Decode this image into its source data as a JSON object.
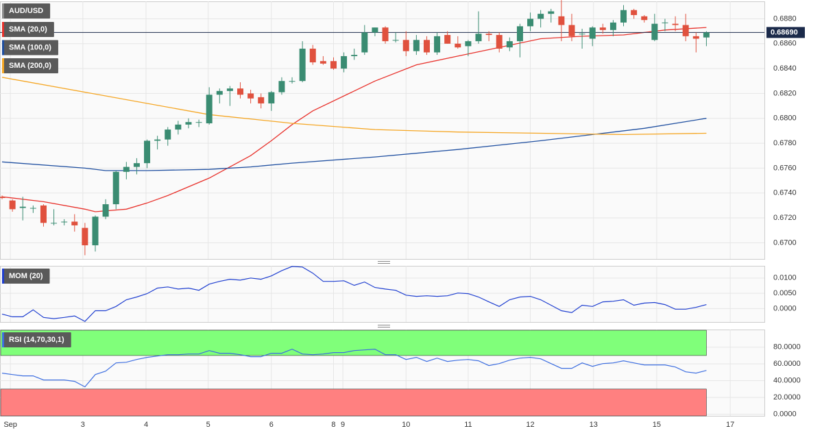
{
  "chart_data": [
    {
      "type": "candlestick",
      "title": "AUD/USD",
      "color_up": "#3a8c72",
      "color_down": "#e0513e",
      "open": [
        0.6737,
        0.6734,
        0.6728,
        0.6728,
        0.673,
        0.6716,
        0.6717,
        0.6717,
        0.6712,
        0.6698,
        0.6721,
        0.6731,
        0.6757,
        0.6761,
        0.6764,
        0.6782,
        0.6783,
        0.6791,
        0.6795,
        0.6797,
        0.6796,
        0.6819,
        0.6822,
        0.6824,
        0.682,
        0.6817,
        0.6812,
        0.6821,
        0.683,
        0.683,
        0.6856,
        0.6846,
        0.6846,
        0.684,
        0.685,
        0.6853,
        0.6869,
        0.6873,
        0.6863,
        0.6863,
        0.6854,
        0.6863,
        0.6853,
        0.6867,
        0.686,
        0.6858,
        0.6862,
        0.6868,
        0.6867,
        0.6857,
        0.6862,
        0.6874,
        0.688,
        0.6884,
        0.6882,
        0.6875,
        0.6868,
        0.6864,
        0.6873,
        0.6871,
        0.6877,
        0.6887,
        0.6882,
        0.6863,
        0.6877,
        0.6876,
        0.6875,
        0.6866,
        0.6865
      ],
      "high": [
        0.6738,
        0.6735,
        0.6737,
        0.673,
        0.6731,
        0.6727,
        0.6719,
        0.6723,
        0.6716,
        0.6722,
        0.6735,
        0.6758,
        0.6765,
        0.6768,
        0.6783,
        0.6786,
        0.6793,
        0.6798,
        0.68,
        0.6799,
        0.6825,
        0.6824,
        0.6826,
        0.6829,
        0.6823,
        0.682,
        0.6822,
        0.6833,
        0.6833,
        0.6862,
        0.6859,
        0.685,
        0.6849,
        0.6853,
        0.6856,
        0.6875,
        0.6873,
        0.6874,
        0.6869,
        0.687,
        0.6867,
        0.6866,
        0.6869,
        0.687,
        0.6866,
        0.6863,
        0.6886,
        0.687,
        0.6869,
        0.6865,
        0.6876,
        0.6885,
        0.6887,
        0.6888,
        0.6895,
        0.6884,
        0.6872,
        0.6874,
        0.6876,
        0.6879,
        0.6891,
        0.6888,
        0.6883,
        0.6884,
        0.688,
        0.6882,
        0.6884,
        0.6869,
        0.687
      ],
      "low": [
        0.6735,
        0.6725,
        0.6718,
        0.6724,
        0.6713,
        0.6714,
        0.6714,
        0.6709,
        0.669,
        0.6693,
        0.6719,
        0.6727,
        0.6751,
        0.6755,
        0.676,
        0.6775,
        0.6778,
        0.6787,
        0.6792,
        0.6793,
        0.6795,
        0.6812,
        0.681,
        0.6816,
        0.6812,
        0.6808,
        0.6806,
        0.6819,
        0.6828,
        0.6829,
        0.6843,
        0.6843,
        0.6839,
        0.6837,
        0.6847,
        0.6851,
        0.6866,
        0.686,
        0.6861,
        0.685,
        0.6851,
        0.6851,
        0.6851,
        0.686,
        0.6856,
        0.685,
        0.686,
        0.6862,
        0.6853,
        0.6854,
        0.6849,
        0.687,
        0.6873,
        0.6877,
        0.6862,
        0.6862,
        0.6856,
        0.6858,
        0.6868,
        0.6866,
        0.6874,
        0.688,
        0.6877,
        0.6862,
        0.687,
        0.687,
        0.6862,
        0.6853,
        0.6858
      ],
      "close": [
        0.6736,
        0.6727,
        0.6729,
        0.6728,
        0.6716,
        0.6716,
        0.6717,
        0.6714,
        0.6698,
        0.6721,
        0.6731,
        0.6757,
        0.6761,
        0.6764,
        0.6782,
        0.6783,
        0.6791,
        0.6795,
        0.6797,
        0.6797,
        0.6819,
        0.6822,
        0.6824,
        0.6819,
        0.6816,
        0.6812,
        0.6821,
        0.683,
        0.683,
        0.6856,
        0.6845,
        0.6844,
        0.684,
        0.685,
        0.6851,
        0.6869,
        0.6873,
        0.6862,
        0.6863,
        0.6854,
        0.6863,
        0.6853,
        0.6866,
        0.686,
        0.6857,
        0.6862,
        0.6868,
        0.6867,
        0.6856,
        0.6862,
        0.6874,
        0.688,
        0.6884,
        0.6886,
        0.6875,
        0.6866,
        0.6868,
        0.6873,
        0.6871,
        0.6877,
        0.6887,
        0.6883,
        0.6879,
        0.6876,
        0.6877,
        0.6875,
        0.6866,
        0.6864,
        0.6869
      ],
      "last_price": {
        "value": 0.6869,
        "label": "0.68690"
      },
      "last_price_color": "#1b2a4a",
      "series": [
        {
          "name": "SMA (20,0)",
          "color": "#e8312b",
          "x": [
            0,
            4,
            8,
            9,
            12,
            14,
            16,
            20,
            24,
            26,
            28,
            30,
            34,
            36,
            40,
            44,
            48,
            52,
            56,
            60,
            64,
            68
          ],
          "values": [
            0.6737,
            0.6733,
            0.6727,
            0.6725,
            0.6727,
            0.6732,
            0.6738,
            0.6752,
            0.677,
            0.6782,
            0.6795,
            0.6806,
            0.6822,
            0.683,
            0.6843,
            0.685,
            0.6857,
            0.6864,
            0.6866,
            0.6867,
            0.6871,
            0.6873
          ]
        },
        {
          "name": "SMA (100,0)",
          "color": "#1f4fa0",
          "x": [
            0,
            8,
            10,
            14,
            20,
            24,
            28,
            36,
            44,
            52,
            57,
            62,
            68
          ],
          "values": [
            0.6765,
            0.676,
            0.6758,
            0.6758,
            0.6759,
            0.6761,
            0.6764,
            0.6769,
            0.6775,
            0.6782,
            0.6787,
            0.6792,
            0.68
          ]
        },
        {
          "name": "SMA (200,0)",
          "color": "#f5a623",
          "x": [
            0,
            10,
            20,
            28,
            36,
            44,
            52,
            60,
            68
          ],
          "values": [
            0.6833,
            0.6818,
            0.6803,
            0.6796,
            0.6791,
            0.6789,
            0.6788,
            0.6787,
            0.6788
          ]
        }
      ],
      "xlim": [
        -0.2,
        73.6
      ],
      "xticks": [
        {
          "value": 0.8,
          "label": "Sep"
        },
        {
          "value": 7.8,
          "label": "3"
        },
        {
          "value": 13.9,
          "label": "4"
        },
        {
          "value": 19.9,
          "label": "5"
        },
        {
          "value": 26,
          "label": "6"
        },
        {
          "value": 32,
          "label": "8"
        },
        {
          "value": 32.9,
          "label": "9"
        },
        {
          "value": 39,
          "label": "10"
        },
        {
          "value": 45,
          "label": "11"
        },
        {
          "value": 51,
          "label": "12"
        },
        {
          "value": 57.1,
          "label": "13"
        },
        {
          "value": 63.2,
          "label": "15"
        },
        {
          "value": 70.3,
          "label": "17"
        }
      ],
      "ylim": [
        0.6687,
        0.6894
      ],
      "yticks": [
        {
          "value": 0.67,
          "label": "0.6700"
        },
        {
          "value": 0.672,
          "label": "0.6720"
        },
        {
          "value": 0.674,
          "label": "0.6740"
        },
        {
          "value": 0.676,
          "label": "0.6760"
        },
        {
          "value": 0.678,
          "label": "0.6780"
        },
        {
          "value": 0.68,
          "label": "0.6800"
        },
        {
          "value": 0.682,
          "label": "0.6820"
        },
        {
          "value": 0.684,
          "label": "0.6840"
        },
        {
          "value": 0.686,
          "label": "0.6860"
        },
        {
          "value": 0.688,
          "label": "0.6880"
        }
      ],
      "grid": true
    },
    {
      "type": "line",
      "title": "MOM (20)",
      "color": "#1f3fd0",
      "values": [
        -0.0018,
        -0.0027,
        -0.0027,
        -0.0004,
        -0.0029,
        -0.0033,
        -0.0029,
        -0.0024,
        -0.0042,
        -0.0007,
        -0.0007,
        0.0007,
        0.0029,
        0.0038,
        0.0049,
        0.0067,
        0.0071,
        0.0064,
        0.0067,
        0.006,
        0.008,
        0.0089,
        0.0096,
        0.0093,
        0.01,
        0.0096,
        0.0107,
        0.0124,
        0.0138,
        0.0136,
        0.0116,
        0.0089,
        0.0089,
        0.0091,
        0.0076,
        0.0087,
        0.0069,
        0.0064,
        0.006,
        0.0044,
        0.004,
        0.0042,
        0.004,
        0.0042,
        0.0051,
        0.0049,
        0.0038,
        0.0022,
        0.0007,
        0.0029,
        0.0038,
        0.004,
        0.0029,
        0.0011,
        -0.0007,
        -0.0013,
        0.0011,
        0.0007,
        0.0022,
        0.0024,
        0.0029,
        0.0011,
        0.0018,
        0.002,
        0.0013,
        -0.0002,
        -0.0002,
        0.0004,
        0.0013
      ],
      "ylim": [
        -0.0044,
        0.014
      ],
      "yticks": [
        {
          "value": 0,
          "label": "0.0000"
        },
        {
          "value": 0.005,
          "label": "0.0050"
        },
        {
          "value": 0.01,
          "label": "0.0100"
        }
      ],
      "grid": true
    },
    {
      "type": "line",
      "title": "RSI (14,70,30,1)",
      "color": "#3d6ee0",
      "values": [
        49.0,
        47.3,
        45.7,
        45.7,
        40.8,
        40.8,
        40.8,
        39.2,
        32.7,
        47.3,
        51.4,
        61.2,
        62.0,
        65.3,
        67.8,
        69.4,
        71.0,
        71.0,
        71.8,
        71.8,
        75.9,
        72.7,
        72.7,
        71.0,
        68.6,
        68.6,
        72.7,
        72.7,
        77.6,
        71.8,
        71.0,
        71.8,
        73.5,
        73.5,
        75.9,
        76.7,
        77.6,
        71.0,
        71.0,
        65.3,
        67.8,
        62.9,
        66.9,
        62.9,
        64.5,
        65.3,
        63.7,
        58.0,
        60.4,
        64.5,
        66.9,
        67.8,
        66.1,
        60.4,
        54.7,
        54.7,
        61.2,
        57.1,
        60.4,
        61.2,
        63.7,
        61.2,
        58.8,
        58.8,
        58.8,
        56.3,
        50.6,
        49.0,
        52.2
      ],
      "overbought": 70,
      "oversold": 30,
      "overbought_color": "#80ff7a",
      "oversold_color": "#ff8080",
      "ylim": [
        -2,
        101
      ],
      "yticks": [
        {
          "value": 0,
          "label": "0.0000"
        },
        {
          "value": 20,
          "label": "20.0000"
        },
        {
          "value": 40,
          "label": "40.0000"
        },
        {
          "value": 60,
          "label": "60.0000"
        },
        {
          "value": 80,
          "label": "80.0000"
        }
      ],
      "grid": true
    }
  ]
}
